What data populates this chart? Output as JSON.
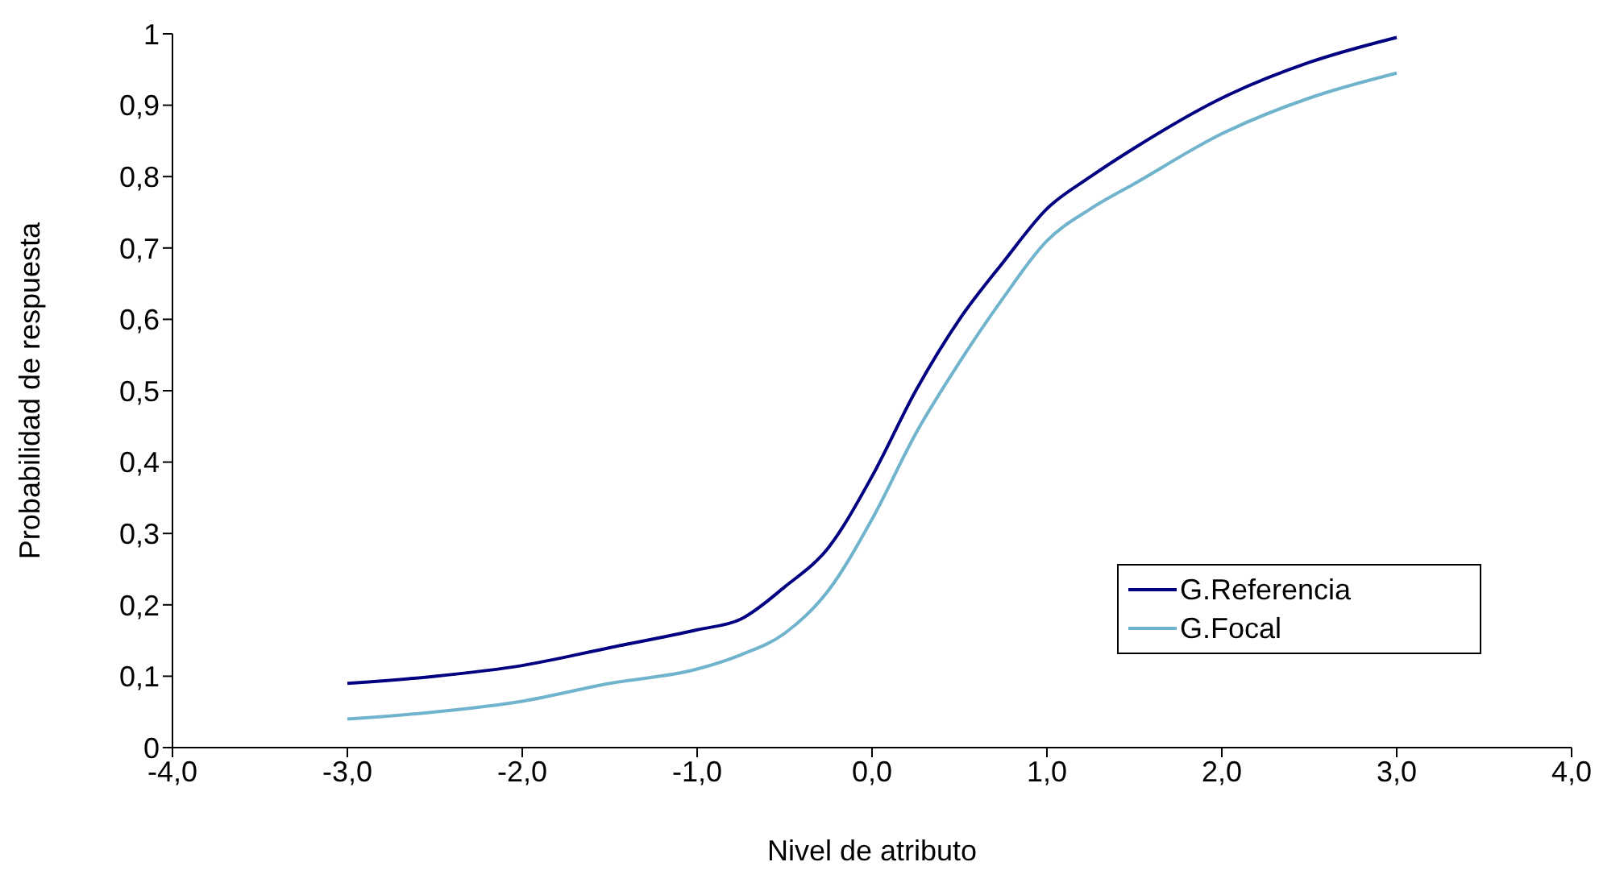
{
  "chart_data": {
    "type": "line",
    "xlabel": "Nivel de atributo",
    "ylabel": "Probabilidad de respuesta",
    "xlim": [
      -4,
      4
    ],
    "xticks": [
      {
        "value": -4,
        "label": "-4,0"
      },
      {
        "value": -3,
        "label": "-3,0"
      },
      {
        "value": -2,
        "label": "-2,0"
      },
      {
        "value": -1,
        "label": "-1,0"
      },
      {
        "value": 0,
        "label": "0,0"
      },
      {
        "value": 1,
        "label": "1,0"
      },
      {
        "value": 2,
        "label": "2,0"
      },
      {
        "value": 3,
        "label": "3,0"
      },
      {
        "value": 4,
        "label": "4,0"
      }
    ],
    "ylim": [
      0,
      1
    ],
    "yticks": [
      0,
      {
        "value": 0.1,
        "label": "0,1"
      },
      {
        "value": 0.2,
        "label": "0,2"
      },
      {
        "value": 0.3,
        "label": "0,3"
      },
      {
        "value": 0.4,
        "label": "0,4"
      },
      {
        "value": 0.5,
        "label": "0,5"
      },
      {
        "value": 0.6,
        "label": "0,6"
      },
      {
        "value": 0.7,
        "label": "0,7"
      },
      {
        "value": 0.8,
        "label": "0,8"
      },
      {
        "value": 0.9,
        "label": "0,9"
      },
      1
    ],
    "x": [
      -3,
      -2.5,
      -2,
      -1.5,
      -1,
      -0.75,
      -0.5,
      -0.25,
      0,
      0.25,
      0.5,
      0.75,
      1,
      1.25,
      1.5,
      2,
      2.5,
      3
    ],
    "series": [
      {
        "name": "G.Referencia",
        "color": "#000080",
        "values": [
          0.09,
          0.1,
          0.115,
          0.14,
          0.165,
          0.18,
          0.225,
          0.28,
          0.38,
          0.5,
          0.6,
          0.68,
          0.755,
          0.8,
          0.84,
          0.91,
          0.96,
          0.995
        ]
      },
      {
        "name": "G.Focal",
        "color": "#6fb3cc",
        "values": [
          0.04,
          0.05,
          0.065,
          0.09,
          0.11,
          0.13,
          0.16,
          0.22,
          0.32,
          0.44,
          0.54,
          0.63,
          0.71,
          0.755,
          0.79,
          0.86,
          0.91,
          0.945
        ]
      }
    ],
    "grid": false,
    "legend": "bottom right",
    "marker": "none",
    "line_style": "solid"
  }
}
